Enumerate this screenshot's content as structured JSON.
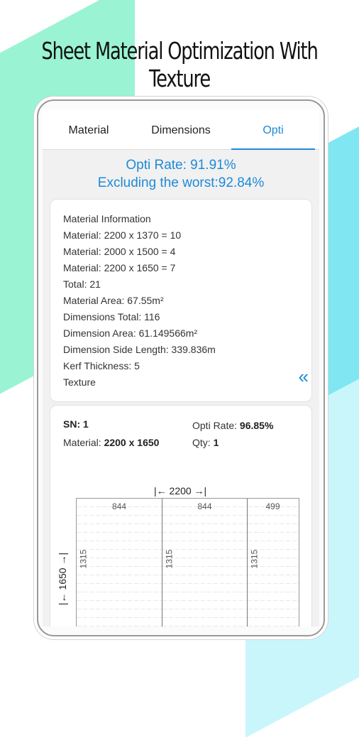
{
  "headline": "Sheet Material Optimization With Texture",
  "tabs": [
    {
      "label": "Material",
      "active": false
    },
    {
      "label": "Dimensions",
      "active": false
    },
    {
      "label": "Opti",
      "active": true
    }
  ],
  "summary": {
    "opti_rate": "Opti Rate: 91.91%",
    "excluding_worst": "Excluding the worst:92.84%"
  },
  "info": {
    "lines": [
      "Material Information",
      "Material: 2200 x 1370 = 10",
      "Material: 2000 x 1500 = 4",
      "Material: 2200 x 1650 = 7",
      "Total: 21",
      "Material Area: 67.55m²",
      "Dimensions Total: 116",
      "Dimension Area: 61.149566m²",
      "Dimension Side Length: 339.836m",
      "Kerf Thickness: 5",
      "Texture"
    ],
    "collapse_icon": "double-chevron-left-icon"
  },
  "sheet": {
    "sn_label": "SN: 1",
    "material_label": "Material: ",
    "material_value": "2200 x 1650",
    "rate_label": "Opti Rate: ",
    "rate_value": "96.85%",
    "qty_label": "Qty: ",
    "qty_value": "1",
    "width_label": "|← 2200 →|",
    "height_label": "|← 1650 →|",
    "pieces": [
      {
        "w": "844",
        "h": "1315"
      },
      {
        "w": "844",
        "h": "1315"
      },
      {
        "w": "499",
        "h": "1315"
      }
    ]
  },
  "colors": {
    "accent": "#1e8ad6",
    "bg_green": "#9af3d2",
    "bg_cyan": "#7fe6f2"
  }
}
